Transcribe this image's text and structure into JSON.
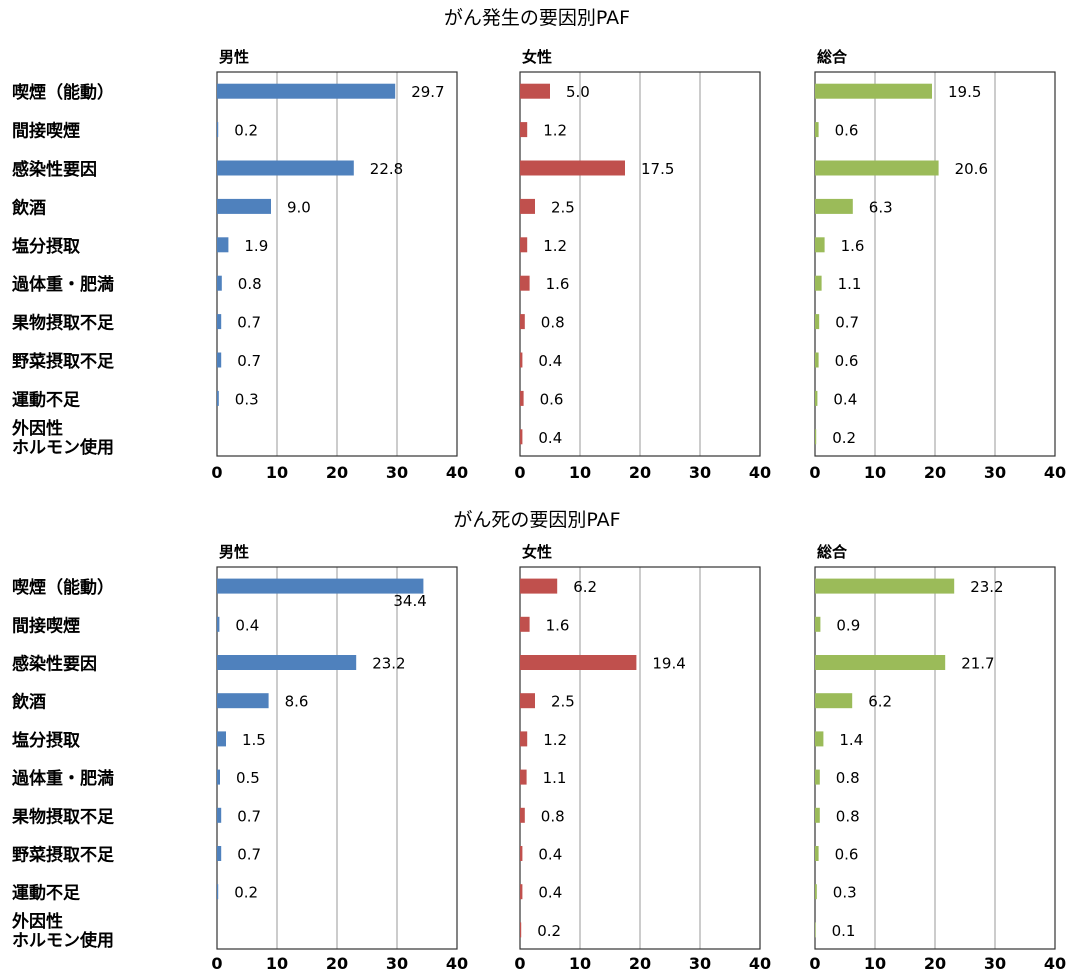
{
  "chart_data": [
    {
      "type": "bar",
      "orientation": "horizontal",
      "title": "がん発生の要因別PAF",
      "categories": [
        "喫煙（能動）",
        "間接喫煙",
        "感染性要因",
        "飲酒",
        "塩分摂取",
        "過体重・肥満",
        "果物摂取不足",
        "野菜摂取不足",
        "運動不足",
        "外因性ホルモン使用"
      ],
      "category_lines": [
        [
          "喫煙（能動）"
        ],
        [
          "間接喫煙"
        ],
        [
          "感染性要因"
        ],
        [
          "飲酒"
        ],
        [
          "塩分摂取"
        ],
        [
          "過体重・肥満"
        ],
        [
          "果物摂取不足"
        ],
        [
          "野菜摂取不足"
        ],
        [
          "運動不足"
        ],
        [
          "外因性",
          "ホルモン使用"
        ]
      ],
      "xlim": [
        0,
        40
      ],
      "xticks": [
        0,
        10,
        20,
        30,
        40
      ],
      "grid": true,
      "series": [
        {
          "name": "男性",
          "color": "#4f81bd",
          "values": [
            29.7,
            0.2,
            22.8,
            9.0,
            1.9,
            0.8,
            0.7,
            0.7,
            0.3,
            null
          ],
          "labels": [
            "29.7",
            "0.2",
            "22.8",
            "9.0",
            "1.9",
            "0.8",
            "0.7",
            "0.7",
            "0.3",
            ""
          ]
        },
        {
          "name": "女性",
          "color": "#c0504d",
          "values": [
            5.0,
            1.2,
            17.5,
            2.5,
            1.2,
            1.6,
            0.8,
            0.4,
            0.6,
            0.4
          ],
          "labels": [
            "5.0",
            "1.2",
            "17.5",
            "2.5",
            "1.2",
            "1.6",
            "0.8",
            "0.4",
            "0.6",
            "0.4"
          ]
        },
        {
          "name": "総合",
          "color": "#9bbb59",
          "values": [
            19.5,
            0.6,
            20.6,
            6.3,
            1.6,
            1.1,
            0.7,
            0.6,
            0.4,
            0.2
          ],
          "labels": [
            "19.5",
            "0.6",
            "20.6",
            "6.3",
            "1.6",
            "1.1",
            "0.7",
            "0.6",
            "0.4",
            "0.2"
          ]
        }
      ]
    },
    {
      "type": "bar",
      "orientation": "horizontal",
      "title": "がん死の要因別PAF",
      "categories": [
        "喫煙（能動）",
        "間接喫煙",
        "感染性要因",
        "飲酒",
        "塩分摂取",
        "過体重・肥満",
        "果物摂取不足",
        "野菜摂取不足",
        "運動不足",
        "外因性ホルモン使用"
      ],
      "category_lines": [
        [
          "喫煙（能動）"
        ],
        [
          "間接喫煙"
        ],
        [
          "感染性要因"
        ],
        [
          "飲酒"
        ],
        [
          "塩分摂取"
        ],
        [
          "過体重・肥満"
        ],
        [
          "果物摂取不足"
        ],
        [
          "野菜摂取不足"
        ],
        [
          "運動不足"
        ],
        [
          "外因性",
          "ホルモン使用"
        ]
      ],
      "xlim": [
        0,
        40
      ],
      "xticks": [
        0,
        10,
        20,
        30,
        40
      ],
      "grid": true,
      "series": [
        {
          "name": "男性",
          "color": "#4f81bd",
          "values": [
            34.4,
            0.4,
            23.2,
            8.6,
            1.5,
            0.5,
            0.7,
            0.7,
            0.2,
            null
          ],
          "labels": [
            "34.4",
            "0.4",
            "23.2",
            "8.6",
            "1.5",
            "0.5",
            "0.7",
            "0.7",
            "0.2",
            ""
          ]
        },
        {
          "name": "女性",
          "color": "#c0504d",
          "values": [
            6.2,
            1.6,
            19.4,
            2.5,
            1.2,
            1.1,
            0.8,
            0.4,
            0.4,
            0.2
          ],
          "labels": [
            "6.2",
            "1.6",
            "19.4",
            "2.5",
            "1.2",
            "1.1",
            "0.8",
            "0.4",
            "0.4",
            "0.2"
          ]
        },
        {
          "name": "総合",
          "color": "#9bbb59",
          "values": [
            23.2,
            0.9,
            21.7,
            6.2,
            1.4,
            0.8,
            0.8,
            0.6,
            0.3,
            0.1
          ],
          "labels": [
            "23.2",
            "0.9",
            "21.7",
            "6.2",
            "1.4",
            "0.8",
            "0.8",
            "0.6",
            "0.3",
            "0.1"
          ]
        }
      ]
    }
  ]
}
